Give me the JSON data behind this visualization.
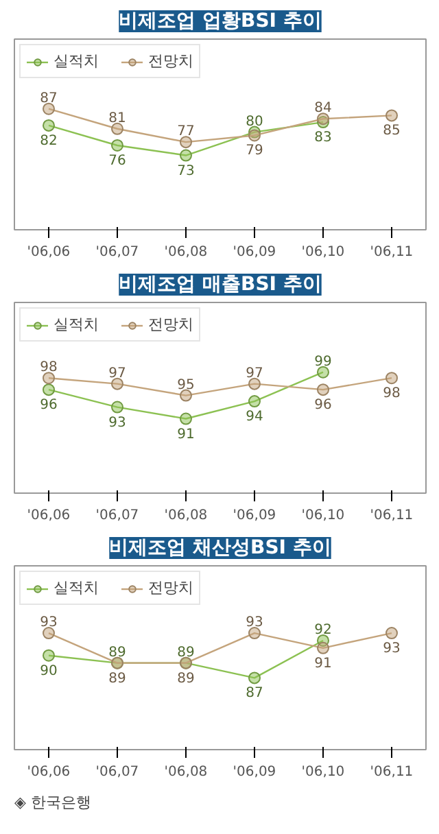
{
  "chart_data": [
    {
      "type": "line",
      "title": "비제조업 업황BSI 추이",
      "categories": [
        "'06,06",
        "'06,07",
        "'06,08",
        "'06,09",
        "'06,10",
        "'06,11"
      ],
      "series": [
        {
          "name": "실적치",
          "color": "#8cc152",
          "values": [
            82,
            76,
            73,
            80,
            83,
            null
          ]
        },
        {
          "name": "전망치",
          "color": "#c4a47c",
          "values": [
            87,
            81,
            77,
            79,
            84,
            85
          ]
        }
      ],
      "data_labels": true,
      "legend": "top left",
      "marker": "circle",
      "grid": false,
      "tick_labels": "x"
    },
    {
      "type": "line",
      "title": "비제조업 매출BSI 추이",
      "categories": [
        "'06,06",
        "'06,07",
        "'06,08",
        "'06,09",
        "'06,10",
        "'06,11"
      ],
      "series": [
        {
          "name": "실적치",
          "color": "#8cc152",
          "values": [
            96,
            93,
            91,
            94,
            99,
            null
          ]
        },
        {
          "name": "전망치",
          "color": "#c4a47c",
          "values": [
            98,
            97,
            95,
            97,
            96,
            98
          ]
        }
      ],
      "data_labels": true,
      "legend": "top left",
      "marker": "circle",
      "grid": false,
      "tick_labels": "x"
    },
    {
      "type": "line",
      "title": "비제조업 채산성BSI 추이",
      "categories": [
        "'06,06",
        "'06,07",
        "'06,08",
        "'06,09",
        "'06,10",
        "'06,11"
      ],
      "series": [
        {
          "name": "실적치",
          "color": "#8cc152",
          "values": [
            90,
            89,
            89,
            87,
            92,
            null
          ]
        },
        {
          "name": "전망치",
          "color": "#c4a47c",
          "values": [
            93,
            89,
            89,
            93,
            91,
            93
          ]
        }
      ],
      "data_labels": true,
      "legend": "top left",
      "marker": "circle",
      "grid": false,
      "tick_labels": "x",
      "annotations": [
        "◈ 한국은행"
      ]
    }
  ]
}
